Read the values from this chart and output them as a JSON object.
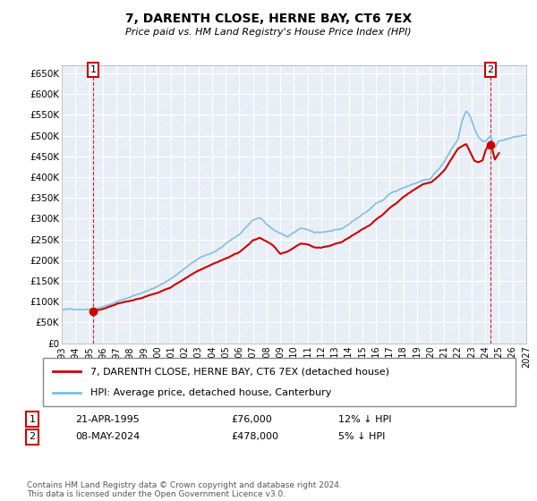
{
  "title": "7, DARENTH CLOSE, HERNE BAY, CT6 7EX",
  "subtitle": "Price paid vs. HM Land Registry's House Price Index (HPI)",
  "legend_label_red": "7, DARENTH CLOSE, HERNE BAY, CT6 7EX (detached house)",
  "legend_label_blue": "HPI: Average price, detached house, Canterbury",
  "point1_date": "21-APR-1995",
  "point1_price": "£76,000",
  "point1_hpi": "12% ↓ HPI",
  "point1_year": 1995.3,
  "point1_value": 76000,
  "point2_date": "08-MAY-2024",
  "point2_price": "£478,000",
  "point2_hpi": "5% ↓ HPI",
  "point2_year": 2024.37,
  "point2_value": 478000,
  "ylim": [
    0,
    670000
  ],
  "xlim_start": 1993,
  "xlim_end": 2027,
  "yticks": [
    0,
    50000,
    100000,
    150000,
    200000,
    250000,
    300000,
    350000,
    400000,
    450000,
    500000,
    550000,
    600000,
    650000
  ],
  "ytick_labels": [
    "£0",
    "£50K",
    "£100K",
    "£150K",
    "£200K",
    "£250K",
    "£300K",
    "£350K",
    "£400K",
    "£450K",
    "£500K",
    "£550K",
    "£600K",
    "£650K"
  ],
  "background_color": "#e8eef5",
  "grid_color": "#ffffff",
  "red_color": "#cc0000",
  "blue_color": "#7fbfdf",
  "footnote": "Contains HM Land Registry data © Crown copyright and database right 2024.\nThis data is licensed under the Open Government Licence v3.0."
}
